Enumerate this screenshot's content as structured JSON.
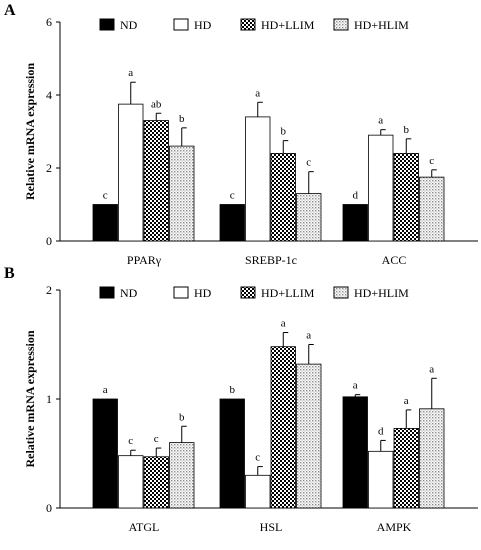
{
  "chart_data": [
    {
      "type": "bar",
      "panel_label": "A",
      "ylabel": "Relative mRNA expression",
      "ylim": [
        0,
        6
      ],
      "yticks": [
        "0",
        "2",
        "4",
        "6"
      ],
      "categories": [
        "PPARγ",
        "SREBP-1c",
        "ACC"
      ],
      "legend_placement": "top",
      "series": [
        {
          "name": "ND",
          "pattern": "solid-black",
          "values": [
            1.0,
            1.0,
            1.0
          ],
          "errors": [
            0,
            0,
            0
          ],
          "letters": [
            "c",
            "c",
            "d"
          ]
        },
        {
          "name": "HD",
          "pattern": "white",
          "values": [
            3.75,
            3.4,
            2.9
          ],
          "errors": [
            0.6,
            0.4,
            0.15
          ],
          "letters": [
            "a",
            "a",
            "a"
          ]
        },
        {
          "name": "HD+LLIM",
          "pattern": "checker",
          "values": [
            3.3,
            2.4,
            2.4
          ],
          "errors": [
            0.2,
            0.35,
            0.4
          ],
          "letters": [
            "ab",
            "b",
            "b"
          ]
        },
        {
          "name": "HD+HLIM",
          "pattern": "dotted",
          "values": [
            2.6,
            1.3,
            1.75
          ],
          "errors": [
            0.5,
            0.6,
            0.2
          ],
          "letters": [
            "b",
            "c",
            "c"
          ]
        }
      ]
    },
    {
      "type": "bar",
      "panel_label": "B",
      "ylabel": "Relative mRNA expression",
      "ylim": [
        0,
        2
      ],
      "yticks": [
        "0",
        "1",
        "2"
      ],
      "categories": [
        "ATGL",
        "HSL",
        "AMPK"
      ],
      "legend_placement": "top",
      "series": [
        {
          "name": "ND",
          "pattern": "solid-black",
          "values": [
            1.0,
            1.0,
            1.02
          ],
          "errors": [
            0,
            0,
            0.02
          ],
          "letters": [
            "a",
            "b",
            "a"
          ]
        },
        {
          "name": "HD",
          "pattern": "white",
          "values": [
            0.48,
            0.3,
            0.52
          ],
          "errors": [
            0.05,
            0.08,
            0.1
          ],
          "letters": [
            "c",
            "c",
            "d"
          ]
        },
        {
          "name": "HD+LLIM",
          "pattern": "checker",
          "values": [
            0.47,
            1.48,
            0.73
          ],
          "errors": [
            0.08,
            0.13,
            0.17
          ],
          "letters": [
            "c",
            "a",
            "a"
          ]
        },
        {
          "name": "HD+HLIM",
          "pattern": "dotted",
          "values": [
            0.6,
            1.32,
            0.91
          ],
          "errors": [
            0.15,
            0.18,
            0.28
          ],
          "letters": [
            "b",
            "a",
            "a"
          ]
        }
      ]
    }
  ]
}
